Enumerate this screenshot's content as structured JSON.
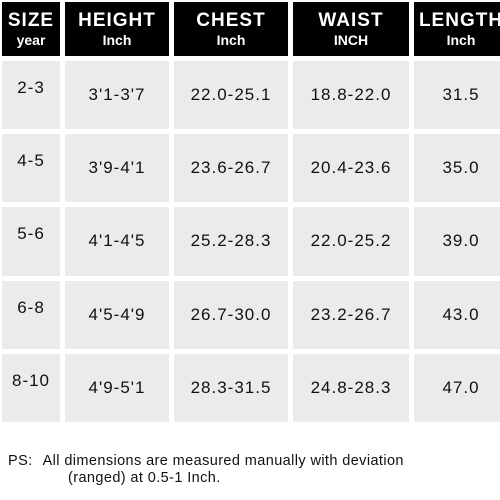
{
  "table": {
    "columns": [
      {
        "label": "SIZE",
        "unit": "year"
      },
      {
        "label": "HEIGHT",
        "unit": "Inch"
      },
      {
        "label": "CHEST",
        "unit": "Inch"
      },
      {
        "label": "WAIST",
        "unit": "INCH"
      },
      {
        "label": "LENGTH",
        "unit": "Inch"
      }
    ],
    "rows": [
      [
        "2-3",
        "3'1-3'7",
        "22.0-25.1",
        "18.8-22.0",
        "31.5"
      ],
      [
        "4-5",
        "3'9-4'1",
        "23.6-26.7",
        "20.4-23.6",
        "35.0"
      ],
      [
        "5-6",
        "4'1-4'5",
        "25.2-28.3",
        "22.0-25.2",
        "39.0"
      ],
      [
        "6-8",
        "4'5-4'9",
        "26.7-30.0",
        "23.2-26.7",
        "43.0"
      ],
      [
        "8-10",
        "4'9-5'1",
        "28.3-31.5",
        "24.8-28.3",
        "47.0"
      ]
    ]
  },
  "note": {
    "prefix": "PS:",
    "line1": "All dimensions are measured manually with deviation",
    "line2": "(ranged) at 0.5-1 Inch."
  }
}
